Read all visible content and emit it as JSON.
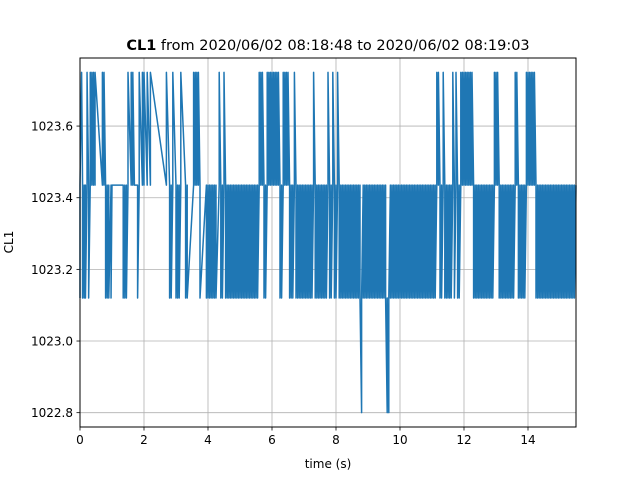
{
  "chart_data": {
    "type": "line",
    "title_bold": "CL1",
    "title_rest": " from 2020/06/02 08:18:48 to 2020/06/02 08:19:03",
    "xlabel": "time (s)",
    "ylabel": "CL1",
    "xlim": [
      0,
      15.5
    ],
    "ylim": [
      1022.76,
      1023.79
    ],
    "xticks": [
      0,
      2,
      4,
      6,
      8,
      10,
      12,
      14
    ],
    "yticks": [
      1022.8,
      1023.0,
      1023.2,
      1023.4,
      1023.6
    ],
    "xtick_labels": [
      "0",
      "2",
      "4",
      "6",
      "8",
      "10",
      "12",
      "14"
    ],
    "ytick_labels": [
      "1022.8",
      "1023.0",
      "1023.2",
      "1023.4",
      "1023.6"
    ],
    "grid": true,
    "line_color": "#1f77b4",
    "levels": [
      1023.12,
      1023.435,
      1023.75,
      1022.8
    ],
    "series": [
      {
        "x": [
          0.0,
          0.0,
          0.05,
          0.08,
          0.08,
          0.13,
          0.13,
          0.17,
          0.17,
          0.22,
          0.22,
          0.27,
          0.27,
          0.32,
          0.32,
          0.37,
          0.37,
          0.42,
          0.42,
          0.47,
          0.47,
          0.7,
          0.7,
          0.75,
          0.75,
          0.8,
          0.8,
          0.85,
          0.85,
          0.9,
          0.9,
          0.97,
          0.97,
          1.0,
          1.0,
          1.3,
          1.3,
          1.35,
          1.35,
          1.4,
          1.4,
          1.45,
          1.45,
          1.5,
          1.5,
          1.6,
          1.6,
          1.65,
          1.65,
          1.7,
          1.7,
          1.8,
          1.8,
          1.85,
          1.85,
          1.95,
          1.95,
          2.0,
          2.0,
          2.1,
          2.1,
          2.2,
          2.2,
          2.7,
          2.7,
          2.8,
          2.8,
          2.85,
          2.85,
          2.9,
          2.9,
          3.0,
          3.0,
          3.05,
          3.05,
          3.1,
          3.1,
          3.15,
          3.15,
          3.3,
          3.3,
          3.35,
          3.35,
          3.55,
          3.55,
          3.6,
          3.6,
          3.65,
          3.65,
          3.7,
          3.7,
          3.75,
          3.75,
          3.95,
          3.95,
          4.0,
          4.0,
          4.05,
          4.05,
          4.1,
          4.1,
          4.15,
          4.15,
          4.2,
          4.2,
          4.25,
          4.25,
          4.35,
          4.35,
          4.4,
          4.4,
          4.45,
          4.45,
          4.5,
          4.5,
          4.55,
          4.55,
          4.6,
          4.6,
          4.65,
          4.65,
          4.7,
          4.7,
          4.75,
          4.75,
          4.8,
          4.8,
          4.85,
          4.85,
          4.9,
          4.9,
          4.95,
          4.95,
          5.0,
          5.0,
          5.05,
          5.05,
          5.1,
          5.1,
          5.15,
          5.15,
          5.2,
          5.2,
          5.25,
          5.25,
          5.3,
          5.3,
          5.35,
          5.35,
          5.4,
          5.4,
          5.45,
          5.45,
          5.5,
          5.5,
          5.55,
          5.55,
          5.6,
          5.6,
          5.65,
          5.65,
          5.7,
          5.7,
          5.75,
          5.75,
          5.8,
          5.8,
          5.85,
          5.85,
          5.9,
          5.9,
          5.95,
          5.95,
          6.0,
          6.0,
          6.05,
          6.05,
          6.1,
          6.1,
          6.15,
          6.15,
          6.2,
          6.2,
          6.25,
          6.25,
          6.3,
          6.3,
          6.35,
          6.35,
          6.4,
          6.4,
          6.45,
          6.45,
          6.5,
          6.5,
          6.55,
          6.55,
          6.6,
          6.6,
          6.65,
          6.65,
          6.7,
          6.7,
          6.75,
          6.75,
          6.8,
          6.8,
          6.85,
          6.85,
          6.9,
          6.9,
          6.95,
          6.95,
          7.0,
          7.0,
          7.05,
          7.05,
          7.1,
          7.1,
          7.15,
          7.15,
          7.2,
          7.2,
          7.25,
          7.25,
          7.3,
          7.3,
          7.35,
          7.35,
          7.4,
          7.4,
          7.45,
          7.45,
          7.5,
          7.5,
          7.55,
          7.55,
          7.6,
          7.6,
          7.65,
          7.65,
          7.7,
          7.7,
          7.75,
          7.75,
          7.8,
          7.8,
          7.85,
          7.85,
          7.9,
          7.9,
          7.95,
          7.95,
          8.0,
          8.0,
          8.05,
          8.05,
          8.1,
          8.1,
          8.15,
          8.15,
          8.2,
          8.2,
          8.25,
          8.25,
          8.3,
          8.3,
          8.35,
          8.35,
          8.4,
          8.4,
          8.45,
          8.45,
          8.5,
          8.5,
          8.55,
          8.55,
          8.6,
          8.6,
          8.65,
          8.65,
          8.7,
          8.7,
          8.75,
          8.75,
          8.8,
          8.8,
          8.85,
          8.85,
          8.9,
          8.9,
          8.95,
          8.95,
          9.0,
          9.0,
          9.05,
          9.05,
          9.1,
          9.1,
          9.15,
          9.15,
          9.2,
          9.2,
          9.25,
          9.25,
          9.3,
          9.3,
          9.35,
          9.35,
          9.4,
          9.4,
          9.45,
          9.45,
          9.5,
          9.5,
          9.55,
          9.55,
          9.6,
          9.6,
          9.65,
          9.65,
          9.7,
          9.7,
          9.75,
          9.75,
          9.8,
          9.8,
          9.85,
          9.85,
          9.9,
          9.9,
          9.95,
          9.95,
          10.0,
          10.0,
          10.05,
          10.05,
          10.1,
          10.1,
          10.15,
          10.15,
          10.2,
          10.2,
          10.25,
          10.25,
          10.3,
          10.3,
          10.35,
          10.35,
          10.4,
          10.4,
          10.45,
          10.45,
          10.5,
          10.5,
          10.55,
          10.55,
          10.6,
          10.6,
          10.65,
          10.65,
          10.7,
          10.7,
          10.75,
          10.75,
          10.8,
          10.8,
          10.85,
          10.85,
          10.9,
          10.9,
          10.95,
          10.95,
          11.0,
          11.0,
          11.05,
          11.05,
          11.1,
          11.1,
          11.15,
          11.15,
          11.2,
          11.2,
          11.25,
          11.25,
          11.3,
          11.3,
          11.35,
          11.35,
          11.4,
          11.4,
          11.45,
          11.45,
          11.5,
          11.5,
          11.55,
          11.55,
          11.6,
          11.6,
          11.65,
          11.65,
          11.7,
          11.7,
          11.75,
          11.75,
          11.8,
          11.8,
          11.85,
          11.85,
          11.9,
          11.9,
          11.95,
          11.95,
          12.0,
          12.0,
          12.05,
          12.05,
          12.1,
          12.1,
          12.15,
          12.15,
          12.2,
          12.2,
          12.25,
          12.25,
          12.3,
          12.3,
          12.35,
          12.35,
          12.4,
          12.4,
          12.45,
          12.45,
          12.5,
          12.5,
          12.55,
          12.55,
          12.6,
          12.6,
          12.65,
          12.65,
          12.7,
          12.7,
          12.75,
          12.75,
          12.8,
          12.8,
          12.85,
          12.85,
          12.9,
          12.9,
          12.95,
          12.95,
          13.0,
          13.0,
          13.05,
          13.05,
          13.1,
          13.1,
          13.15,
          13.15,
          13.2,
          13.2,
          13.25,
          13.25,
          13.3,
          13.3,
          13.35,
          13.35,
          13.4,
          13.4,
          13.45,
          13.45,
          13.5,
          13.5,
          13.55,
          13.55,
          13.6,
          13.6,
          13.65,
          13.65,
          13.7,
          13.7,
          13.75,
          13.75,
          13.8,
          13.8,
          13.85,
          13.85,
          13.9,
          13.9,
          13.95,
          13.95,
          14.0,
          14.0,
          14.05,
          14.05,
          14.1,
          14.1,
          14.15,
          14.15,
          14.2,
          14.2,
          14.25,
          14.25,
          14.3,
          14.3,
          14.35,
          14.35,
          14.4,
          14.4,
          14.45,
          14.45,
          14.5,
          14.5,
          14.55,
          14.55,
          14.6,
          14.6,
          14.65,
          14.65,
          14.7,
          14.7,
          14.75,
          14.75,
          14.8,
          14.8,
          14.85,
          14.85,
          14.9,
          14.9,
          14.95,
          14.95,
          15.0,
          15.0,
          15.05,
          15.05,
          15.1,
          15.1,
          15.15,
          15.15,
          15.2,
          15.2,
          15.25,
          15.25,
          15.3,
          15.3,
          15.35,
          15.35,
          15.4,
          15.4,
          15.45,
          15.45,
          15.5
        ],
        "y_codes": "01210101012101212121212121010101011111010101212121110121212121212101012101010121010121212121010101010101010121010121010101010101010101010101010101010101010101212121010121212121212121210101212121210101012101010101010101010101012101010101010101012101012101012101010101010101010101010101030101010101010101010101010101010303010101010101010101010101010101010101010101010101010101010101212101012101010101012101210101212121212121212101010101010101010101010101212121010101010101010101012121010101010121212121212101010101010101010101010101010101010101010101010101010101010301010101010101212101010101010101010101010101010101010101010101010101010101010121"
      }
    ]
  }
}
